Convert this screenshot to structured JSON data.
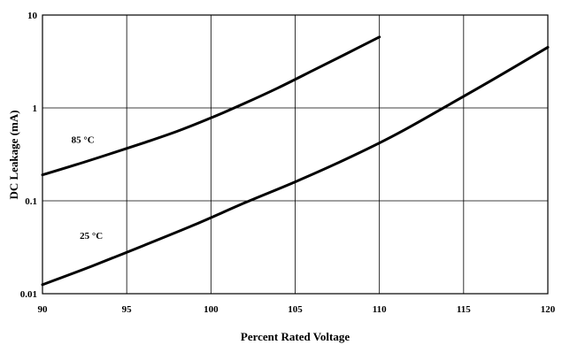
{
  "chart_data": {
    "type": "line",
    "xlabel": "Percent Rated Voltage",
    "ylabel": "DC Leakage (mA)",
    "xlim": [
      90,
      120
    ],
    "ylim": [
      0.01,
      10
    ],
    "yscale": "log",
    "grid": true,
    "xticks": [
      "90",
      "95",
      "100",
      "105",
      "110",
      "115",
      "120"
    ],
    "yticks": [
      "0.01",
      "0.1",
      "1",
      "10"
    ],
    "series": [
      {
        "name": "85 °C",
        "x": [
          90,
          92,
          94,
          96,
          98,
          100,
          102,
          104,
          106,
          108,
          110
        ],
        "y": [
          0.19,
          0.245,
          0.32,
          0.42,
          0.56,
          0.78,
          1.12,
          1.65,
          2.5,
          3.8,
          5.8
        ]
      },
      {
        "name": "25 °C",
        "x": [
          90,
          93,
          96,
          99,
          102,
          105,
          108,
          111,
          114,
          117,
          120
        ],
        "y": [
          0.0125,
          0.02,
          0.033,
          0.055,
          0.095,
          0.16,
          0.28,
          0.52,
          1.05,
          2.15,
          4.5
        ]
      }
    ]
  }
}
